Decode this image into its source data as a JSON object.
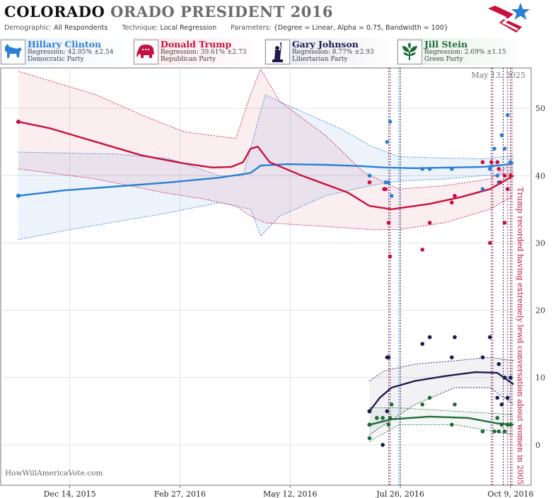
{
  "header": {
    "title_main": "COLORADO",
    "title_secondary": "ORADO PRESIDENT 2016",
    "demographic_label": "Demographic:",
    "demographic_value": "All Respondents",
    "technique_label": "Technique:",
    "technique_value": "Local Regression",
    "parameters_label": "Parameters:",
    "parameters_value": "{Degree = Linear, Alpha = 0.75, Bandwidth = 100}"
  },
  "candidates": [
    {
      "name": "Hillary Clinton",
      "regression": "Regression: 42.05% ±2.54",
      "party": "Democratic Party",
      "color": "#2a7fd4",
      "icon": "donkey-icon"
    },
    {
      "name": "Donald Trump",
      "regression": "Regression: 39.61% ±2.73",
      "party": "Republican Party",
      "color": "#c8103e",
      "icon": "elephant-icon"
    },
    {
      "name": "Gary Johnson",
      "regression": "Regression: 8.77% ±2.93",
      "party": "Libertarian Party",
      "color": "#1a1a4e",
      "icon": "statue-of-liberty-icon"
    },
    {
      "name": "Jill Stein",
      "regression": "Regression: 2.69% ±1.15",
      "party": "Green Party",
      "color": "#1e6b3a",
      "icon": "leaf-icon"
    }
  ],
  "chart_data": {
    "type": "scatter",
    "date_label": "May 13, 2025",
    "watermark": "HowWillAmericaVote.com",
    "annotation": "Trump recorded having extremely lewd conversation about women in 2005",
    "x_axis": {
      "range": [
        "2015-10-28",
        "2016-10-23"
      ],
      "ticks": [
        {
          "date": "2015-12-14",
          "label": "Dec 14, 2015"
        },
        {
          "date": "2016-02-27",
          "label": "Feb 27, 2016"
        },
        {
          "date": "2016-05-12",
          "label": "May 12, 2016"
        },
        {
          "date": "2016-07-26",
          "label": "Jul 26, 2016"
        },
        {
          "date": "2016-10-09",
          "label": "Oct 9, 2016"
        }
      ]
    },
    "y_axis": {
      "range": [
        -6,
        56
      ],
      "ticks": [
        0,
        10,
        20,
        30,
        40,
        50
      ],
      "grid": true
    },
    "vertical_markers": [
      {
        "date": "2016-07-18",
        "color": "#c8103e"
      },
      {
        "date": "2016-07-19",
        "color": "#1a1a4e"
      },
      {
        "date": "2016-07-25",
        "color": "#2a7fd4"
      },
      {
        "date": "2016-07-26",
        "color": "#1a1a4e"
      },
      {
        "date": "2016-09-26",
        "color": "#1a1a4e"
      },
      {
        "date": "2016-09-27",
        "color": "#c8103e"
      },
      {
        "date": "2016-10-04",
        "color": "#1a1a4e"
      },
      {
        "date": "2016-10-07",
        "color": "#c8103e"
      },
      {
        "date": "2016-10-09",
        "color": "#1a1a4e"
      },
      {
        "date": "2016-10-10",
        "color": "#c8103e"
      }
    ],
    "series": [
      {
        "name": "Hillary Clinton",
        "color": "#2a7fd4",
        "band_fill": "rgba(42,127,212,0.09)",
        "line": [
          [
            "2015-11-09",
            37
          ],
          [
            "2015-12-10",
            37.8
          ],
          [
            "2016-01-15",
            38.4
          ],
          [
            "2016-02-20",
            39.0
          ],
          [
            "2016-03-25",
            39.7
          ],
          [
            "2016-04-15",
            40.4
          ],
          [
            "2016-04-22",
            41.5
          ],
          [
            "2016-05-10",
            41.7
          ],
          [
            "2016-06-05",
            41.6
          ],
          [
            "2016-06-30",
            41.4
          ],
          [
            "2016-07-15",
            41.2
          ],
          [
            "2016-08-05",
            41.1
          ],
          [
            "2016-08-30",
            41.2
          ],
          [
            "2016-09-20",
            41.3
          ],
          [
            "2016-10-05",
            41.6
          ],
          [
            "2016-10-11",
            41.9
          ]
        ],
        "upper": [
          [
            "2015-11-09",
            43.5
          ],
          [
            "2016-01-15",
            43.2
          ],
          [
            "2016-02-20",
            42.5
          ],
          [
            "2016-03-25",
            40.0
          ],
          [
            "2016-04-10",
            40.0
          ],
          [
            "2016-04-15",
            44.0
          ],
          [
            "2016-04-25",
            52.0
          ],
          [
            "2016-05-15",
            50.0
          ],
          [
            "2016-06-15",
            47.0
          ],
          [
            "2016-07-05",
            44.5
          ],
          [
            "2016-07-25",
            42.8
          ],
          [
            "2016-08-25",
            42.6
          ],
          [
            "2016-09-20",
            42.5
          ],
          [
            "2016-10-05",
            42.8
          ],
          [
            "2016-10-11",
            43.0
          ]
        ],
        "lower": [
          [
            "2015-11-09",
            30.5
          ],
          [
            "2015-12-15",
            32.0
          ],
          [
            "2016-02-20",
            34.5
          ],
          [
            "2016-03-25",
            36.0
          ],
          [
            "2016-04-15",
            35.0
          ],
          [
            "2016-04-22",
            31.0
          ],
          [
            "2016-05-05",
            34.0
          ],
          [
            "2016-06-05",
            37.0
          ],
          [
            "2016-07-05",
            38.5
          ],
          [
            "2016-07-25",
            39.2
          ],
          [
            "2016-08-25",
            39.5
          ],
          [
            "2016-09-20",
            40.0
          ],
          [
            "2016-10-05",
            40.2
          ],
          [
            "2016-10-11",
            40.5
          ]
        ],
        "points": [
          [
            "2016-07-05",
            40
          ],
          [
            "2016-07-15",
            38
          ],
          [
            "2016-07-16",
            39
          ],
          [
            "2016-07-17",
            45
          ],
          [
            "2016-07-18",
            39
          ],
          [
            "2016-07-19",
            48
          ],
          [
            "2016-07-20",
            37
          ],
          [
            "2016-08-10",
            41
          ],
          [
            "2016-08-15",
            41
          ],
          [
            "2016-08-30",
            41
          ],
          [
            "2016-09-20",
            38
          ],
          [
            "2016-09-25",
            41
          ],
          [
            "2016-09-28",
            44
          ],
          [
            "2016-09-30",
            40
          ],
          [
            "2016-10-01",
            39
          ],
          [
            "2016-10-03",
            46
          ],
          [
            "2016-10-05",
            44
          ],
          [
            "2016-10-07",
            49
          ],
          [
            "2016-10-09",
            42
          ]
        ]
      },
      {
        "name": "Donald Trump",
        "color": "#c8103e",
        "band_fill": "rgba(200,16,62,0.07)",
        "line": [
          [
            "2015-11-09",
            48
          ],
          [
            "2015-12-01",
            47.0
          ],
          [
            "2016-01-01",
            45.0
          ],
          [
            "2016-02-01",
            43.0
          ],
          [
            "2016-03-01",
            41.8
          ],
          [
            "2016-03-20",
            41.2
          ],
          [
            "2016-04-02",
            41.3
          ],
          [
            "2016-04-10",
            42.0
          ],
          [
            "2016-04-15",
            44.0
          ],
          [
            "2016-04-20",
            44.3
          ],
          [
            "2016-04-28",
            42.0
          ],
          [
            "2016-05-20",
            40.0
          ],
          [
            "2016-06-20",
            37.5
          ],
          [
            "2016-07-05",
            35.5
          ],
          [
            "2016-07-20",
            35.0
          ],
          [
            "2016-08-15",
            35.8
          ],
          [
            "2016-09-05",
            36.8
          ],
          [
            "2016-09-25",
            38.0
          ],
          [
            "2016-10-11",
            40.0
          ]
        ],
        "upper": [
          [
            "2015-11-09",
            55.5
          ],
          [
            "2016-01-01",
            52.0
          ],
          [
            "2016-02-01",
            49.0
          ],
          [
            "2016-03-01",
            46.5
          ],
          [
            "2016-04-05",
            45.5
          ],
          [
            "2016-04-15",
            52.0
          ],
          [
            "2016-04-22",
            55.8
          ],
          [
            "2016-05-05",
            51.0
          ],
          [
            "2016-06-05",
            46.0
          ],
          [
            "2016-07-01",
            40.5
          ],
          [
            "2016-07-25",
            38.0
          ],
          [
            "2016-08-25",
            38.5
          ],
          [
            "2016-09-25",
            39.5
          ],
          [
            "2016-10-11",
            42.0
          ]
        ],
        "lower": [
          [
            "2015-11-09",
            41.0
          ],
          [
            "2016-01-01",
            39.5
          ],
          [
            "2016-02-15",
            37.5
          ],
          [
            "2016-03-15",
            36.5
          ],
          [
            "2016-04-05",
            35.5
          ],
          [
            "2016-04-15",
            34.0
          ],
          [
            "2016-04-25",
            33.0
          ],
          [
            "2016-06-01",
            32.5
          ],
          [
            "2016-07-05",
            32.0
          ],
          [
            "2016-07-25",
            32.0
          ],
          [
            "2016-08-25",
            33.0
          ],
          [
            "2016-09-25",
            35.0
          ],
          [
            "2016-10-11",
            37.0
          ]
        ],
        "points": [
          [
            "2016-07-05",
            39
          ],
          [
            "2016-07-15",
            38
          ],
          [
            "2016-07-16",
            38
          ],
          [
            "2016-07-18",
            33
          ],
          [
            "2016-07-19",
            28
          ],
          [
            "2016-08-10",
            29
          ],
          [
            "2016-08-15",
            33
          ],
          [
            "2016-08-30",
            36
          ],
          [
            "2016-09-01",
            37
          ],
          [
            "2016-09-20",
            42
          ],
          [
            "2016-09-25",
            30
          ],
          [
            "2016-09-26",
            42
          ],
          [
            "2016-09-30",
            42
          ],
          [
            "2016-10-01",
            41
          ],
          [
            "2016-10-02",
            39
          ],
          [
            "2016-10-05",
            33
          ],
          [
            "2016-10-07",
            38
          ],
          [
            "2016-10-09",
            40
          ],
          [
            "2016-10-05",
            40
          ]
        ]
      },
      {
        "name": "Gary Johnson",
        "color": "#1a1a4e",
        "band_fill": "rgba(26,26,78,0.06)",
        "line": [
          [
            "2016-07-05",
            5.0
          ],
          [
            "2016-07-12",
            7.0
          ],
          [
            "2016-07-20",
            8.5
          ],
          [
            "2016-08-05",
            9.5
          ],
          [
            "2016-08-25",
            10.2
          ],
          [
            "2016-09-15",
            10.8
          ],
          [
            "2016-09-30",
            10.7
          ],
          [
            "2016-10-11",
            9.0
          ]
        ],
        "upper": [
          [
            "2016-07-05",
            9.5
          ],
          [
            "2016-07-15",
            11.0
          ],
          [
            "2016-08-05",
            12.0
          ],
          [
            "2016-09-01",
            12.5
          ],
          [
            "2016-09-25",
            13.0
          ],
          [
            "2016-10-11",
            12.5
          ]
        ],
        "lower": [
          [
            "2016-07-05",
            1.5
          ],
          [
            "2016-07-15",
            3.0
          ],
          [
            "2016-08-05",
            6.0
          ],
          [
            "2016-09-01",
            8.5
          ],
          [
            "2016-09-25",
            8.5
          ],
          [
            "2016-10-11",
            6.0
          ]
        ],
        "points": [
          [
            "2016-07-14",
            0
          ],
          [
            "2016-07-17",
            13
          ],
          [
            "2016-07-18",
            13
          ],
          [
            "2016-07-17",
            5
          ],
          [
            "2016-08-10",
            15
          ],
          [
            "2016-08-15",
            16
          ],
          [
            "2016-08-30",
            13
          ],
          [
            "2016-09-01",
            16
          ],
          [
            "2016-09-20",
            13
          ],
          [
            "2016-09-25",
            16
          ],
          [
            "2016-09-30",
            7
          ],
          [
            "2016-10-01",
            12
          ],
          [
            "2016-10-03",
            6
          ],
          [
            "2016-10-05",
            10
          ],
          [
            "2016-10-07",
            7
          ],
          [
            "2016-10-09",
            10
          ]
        ]
      },
      {
        "name": "Jill Stein",
        "color": "#1e6b3a",
        "band_fill": "rgba(30,107,58,0.05)",
        "line": [
          [
            "2016-07-05",
            3.0
          ],
          [
            "2016-07-20",
            3.8
          ],
          [
            "2016-08-15",
            4.2
          ],
          [
            "2016-09-10",
            4.0
          ],
          [
            "2016-09-30",
            3.2
          ],
          [
            "2016-10-11",
            3.0
          ]
        ],
        "upper": [
          [
            "2016-07-05",
            5.5
          ],
          [
            "2016-07-25",
            5.5
          ],
          [
            "2016-09-01",
            5.0
          ],
          [
            "2016-10-11",
            4.5
          ]
        ],
        "lower": [
          [
            "2016-07-05",
            0.5
          ],
          [
            "2016-07-25",
            3.0
          ],
          [
            "2016-09-01",
            3.0
          ],
          [
            "2016-10-11",
            1.5
          ]
        ],
        "points": [
          [
            "2016-07-05",
            1
          ],
          [
            "2016-07-10",
            4
          ],
          [
            "2016-07-14",
            4
          ],
          [
            "2016-07-18",
            3
          ],
          [
            "2016-07-19",
            4
          ],
          [
            "2016-07-20",
            6
          ],
          [
            "2016-08-10",
            6
          ],
          [
            "2016-08-15",
            7
          ],
          [
            "2016-08-30",
            3
          ],
          [
            "2016-09-01",
            6
          ],
          [
            "2016-09-20",
            2
          ],
          [
            "2016-09-28",
            2
          ],
          [
            "2016-09-30",
            4
          ],
          [
            "2016-10-01",
            2
          ],
          [
            "2016-10-03",
            3
          ],
          [
            "2016-10-05",
            2
          ],
          [
            "2016-10-07",
            3
          ],
          [
            "2016-10-09",
            3
          ]
        ]
      }
    ]
  }
}
